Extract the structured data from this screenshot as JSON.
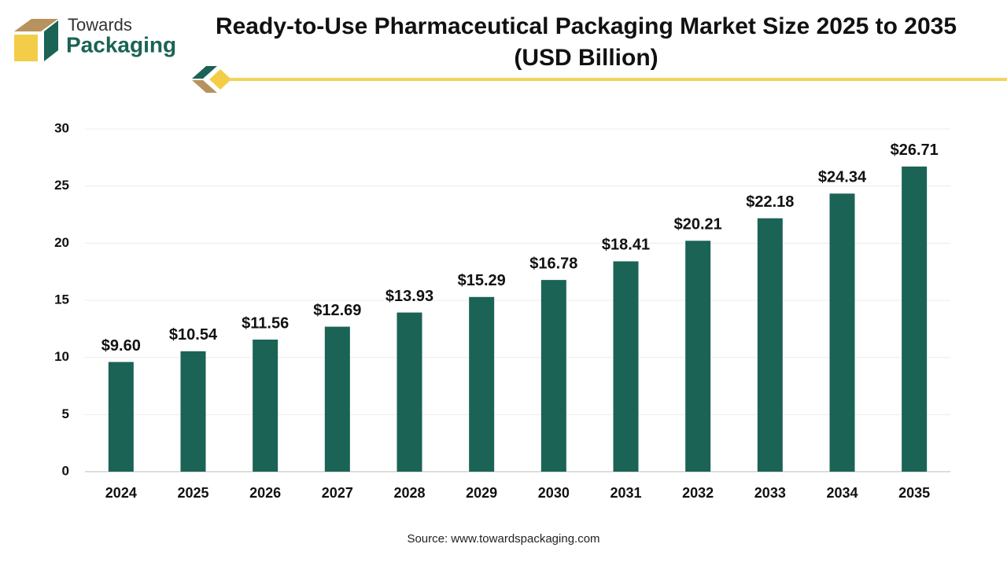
{
  "chart_data": {
    "type": "bar",
    "title": "Ready-to-Use Pharmaceutical Packaging Market Size 2025 to 2035 (USD Billion)",
    "brand": [
      "Towards",
      "Packaging"
    ],
    "source": "Source: www.towardspackaging.com",
    "categories": [
      "2024",
      "2025",
      "2026",
      "2027",
      "2028",
      "2029",
      "2030",
      "2031",
      "2032",
      "2033",
      "2034",
      "2035"
    ],
    "values": [
      9.6,
      10.54,
      11.56,
      12.69,
      13.93,
      15.29,
      16.78,
      18.41,
      20.21,
      22.18,
      24.34,
      26.71
    ],
    "value_labels": [
      "$9.60",
      "$10.54",
      "$11.56",
      "$12.69",
      "$13.93",
      "$15.29",
      "$16.78",
      "$18.41",
      "$20.21",
      "$22.18",
      "$24.34",
      "$26.71"
    ],
    "color": "#1a6355",
    "ylim": [
      0,
      30
    ],
    "yticks": [
      0,
      5,
      10,
      15,
      20,
      25,
      30
    ],
    "grid": true
  }
}
